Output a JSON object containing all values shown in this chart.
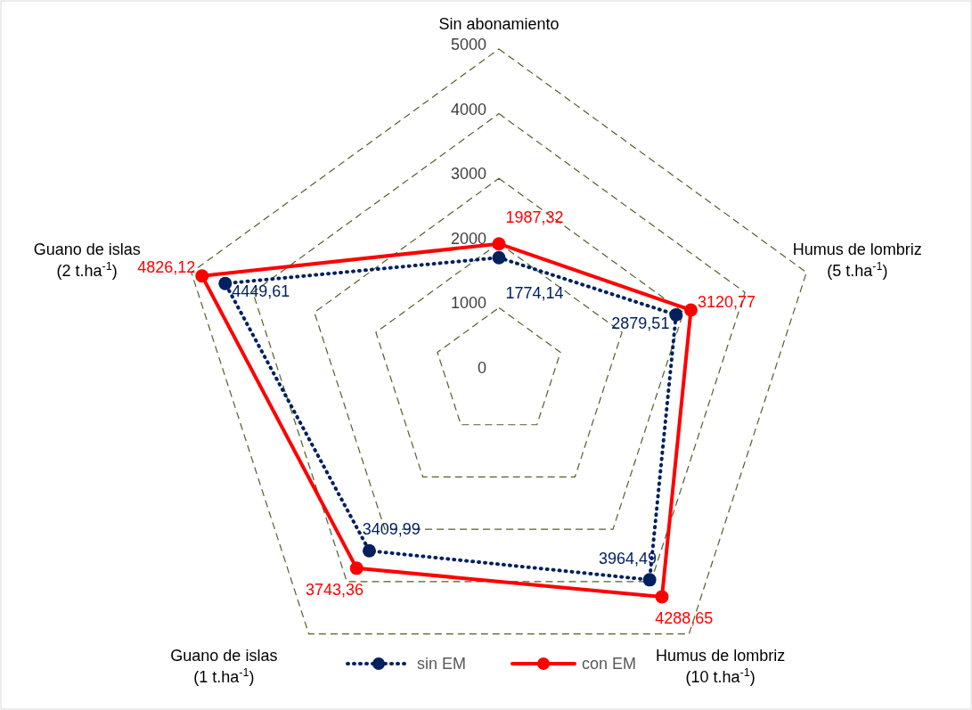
{
  "chart_data": {
    "type": "radar",
    "categories": [
      "Sin abonamiento",
      "Humus de lombriz\n(5 t.ha$^{-1}$)",
      "Humus de lombriz\n(10 t.ha$^{-1}$)",
      "Guano de islas\n(1 t.ha$^{-1}$)",
      "Guano de islas\n(2 t.ha$^{-1}$)"
    ],
    "series": [
      {
        "name": "sin EM",
        "color": "#002060",
        "values": [
          1774.14,
          2879.51,
          3964.49,
          3409.99,
          4449.61
        ],
        "value_labels": [
          "1774,14",
          "2879,51",
          "3964,49",
          "3409,99",
          "4449,61"
        ],
        "line_style": "dotted",
        "marker": "circle"
      },
      {
        "name": "con EM",
        "color": "#ff0000",
        "values": [
          1987.32,
          3120.77,
          4288.65,
          3743.36,
          4826.12
        ],
        "value_labels": [
          "1987,32",
          "3120,77",
          "4288,65",
          "3743,36",
          "4826,12"
        ],
        "line_style": "solid",
        "marker": "circle"
      }
    ],
    "ylim": [
      0,
      5000
    ],
    "yticks": [
      0,
      1000,
      2000,
      3000,
      4000,
      5000
    ],
    "grid": true,
    "legend": "bottom"
  }
}
